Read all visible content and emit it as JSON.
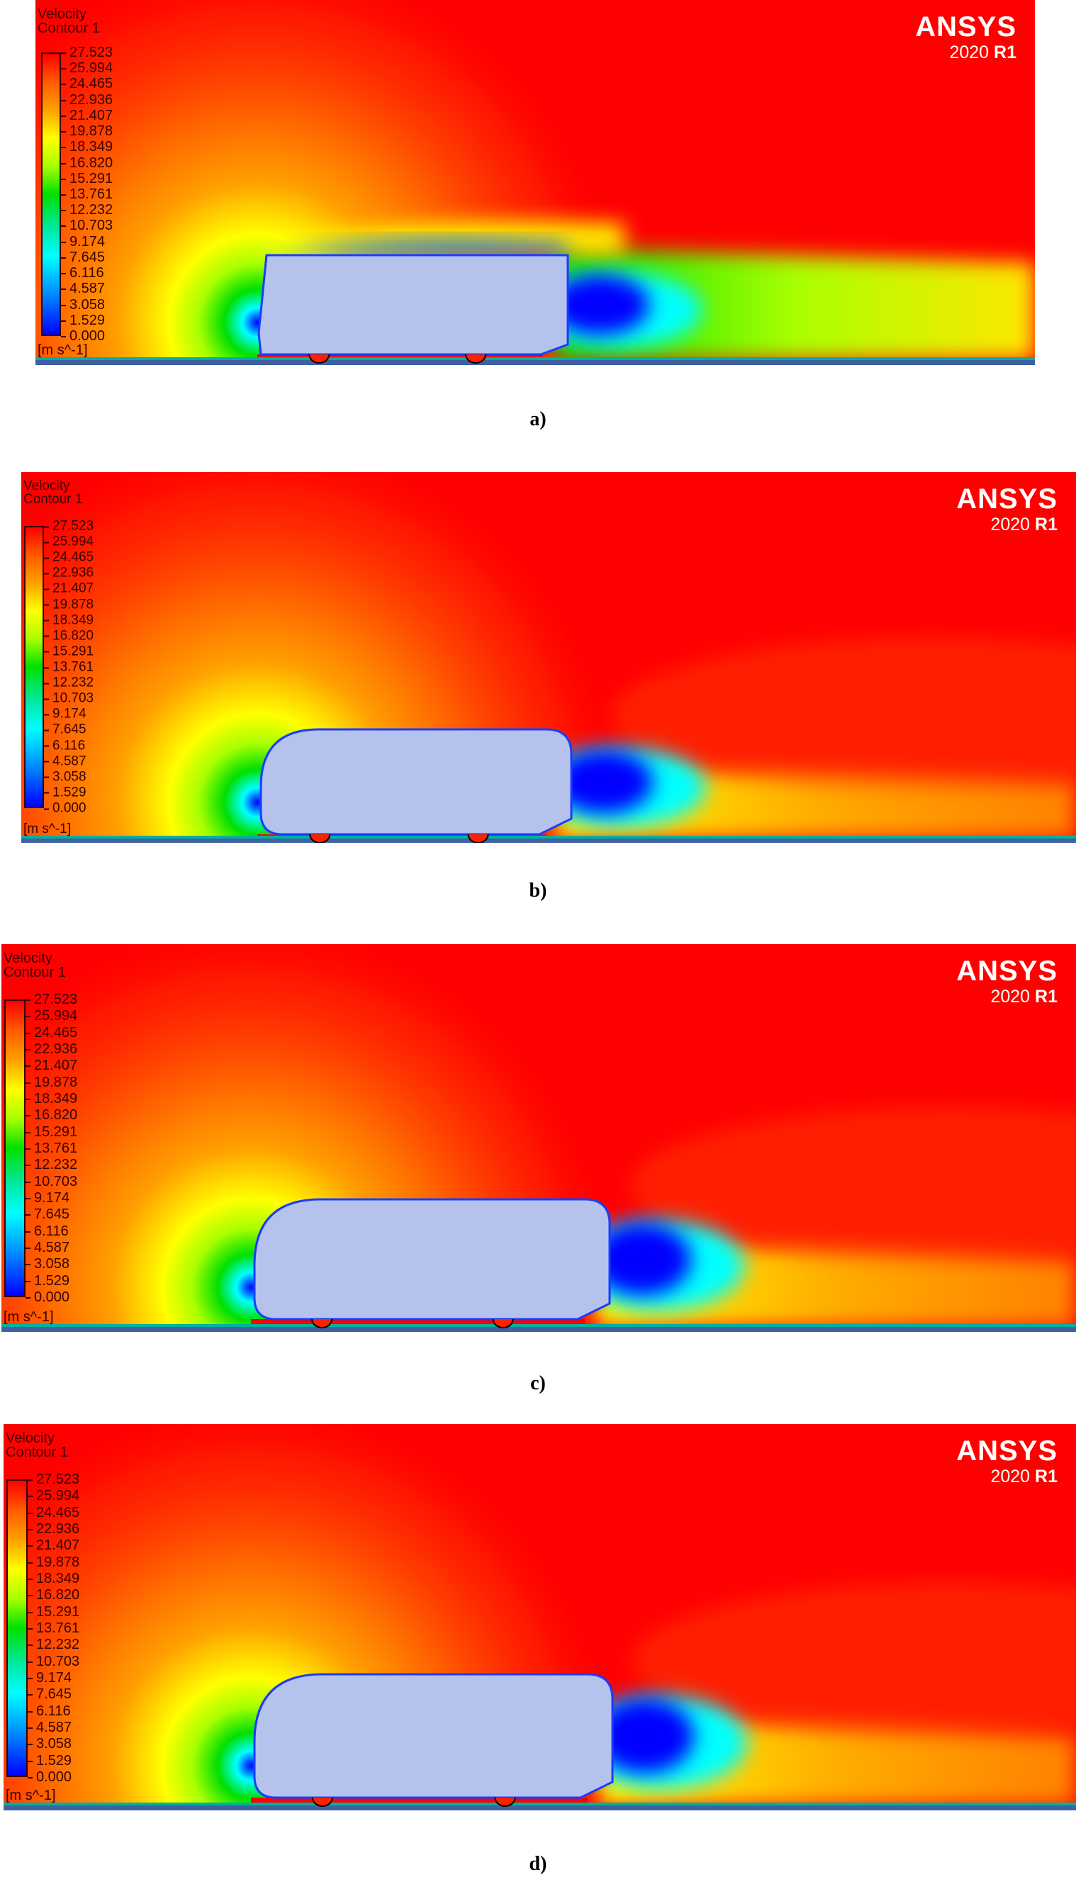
{
  "legend": {
    "title": "Velocity",
    "subtitle": "Contour 1",
    "ticks": [
      "27.523",
      "25.994",
      "24.465",
      "22.936",
      "21.407",
      "19.878",
      "18.349",
      "16.820",
      "15.291",
      "13.761",
      "12.232",
      "10.703",
      "9.174",
      "7.645",
      "6.116",
      "4.587",
      "3.058",
      "1.529",
      "0.000"
    ],
    "units": "[m s^-1]",
    "range": [
      0,
      27.523
    ],
    "colormap": [
      "#0000ff",
      "#00ffff",
      "#00e000",
      "#ffff00",
      "#ffa000",
      "#ff0000"
    ]
  },
  "logo": {
    "brand": "ANSYS",
    "version_year": "2020",
    "version_release": "R1"
  },
  "panels": [
    {
      "caption": "a)"
    },
    {
      "caption": "b)"
    },
    {
      "caption": "c)"
    },
    {
      "caption": "d)"
    }
  ],
  "colors": {
    "background_flow": "#ff0000",
    "vehicle_body": "#b4c2ec",
    "vehicle_outline": "#1a3cff"
  }
}
